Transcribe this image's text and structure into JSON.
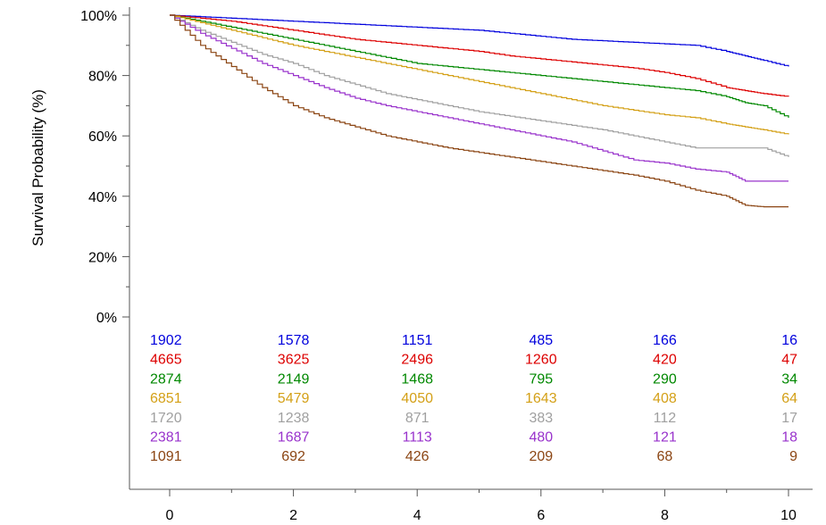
{
  "chart_data": {
    "type": "line",
    "title": "",
    "xlabel": "",
    "ylabel": "Survival Probability (%)",
    "xlim": [
      0,
      10
    ],
    "ylim": [
      0,
      100
    ],
    "x_ticks": [
      "0",
      "2",
      "4",
      "6",
      "8",
      "10"
    ],
    "y_ticks": [
      "0%",
      "20%",
      "40%",
      "60%",
      "80%",
      "100%"
    ],
    "grid": false,
    "legend": "none",
    "series": [
      {
        "color": "#0000dd",
        "x": [
          0,
          0.5,
          1,
          1.5,
          2,
          2.5,
          3,
          3.5,
          4,
          4.5,
          5,
          5.5,
          6,
          6.5,
          7,
          7.5,
          8,
          8.5,
          9,
          9.3,
          9.6,
          10
        ],
        "values": [
          100,
          99.5,
          99,
          98.5,
          98,
          97.5,
          97,
          96.5,
          96,
          95.5,
          95,
          94,
          93,
          92,
          91.5,
          91,
          90.5,
          90,
          88,
          86.5,
          85,
          83
        ]
      },
      {
        "color": "#dd0000",
        "x": [
          0,
          0.5,
          1,
          1.5,
          2,
          2.5,
          3,
          3.5,
          4,
          4.5,
          5,
          5.5,
          6,
          6.5,
          7,
          7.5,
          8,
          8.5,
          9,
          9.3,
          9.6,
          10
        ],
        "values": [
          100,
          99,
          98,
          96.5,
          95,
          93.5,
          92,
          91,
          90,
          89,
          88,
          86.5,
          85.5,
          84.5,
          83.5,
          82.5,
          81,
          79,
          76,
          75,
          74,
          73
        ]
      },
      {
        "color": "#008800",
        "x": [
          0,
          0.5,
          1,
          1.5,
          2,
          2.5,
          3,
          3.5,
          4,
          4.5,
          5,
          5.5,
          6,
          6.5,
          7,
          7.5,
          8,
          8.5,
          9,
          9.3,
          9.6,
          10
        ],
        "values": [
          100,
          98,
          96,
          94,
          92,
          90,
          88,
          86,
          84,
          83,
          82,
          81,
          80,
          79,
          78,
          77,
          76,
          75,
          73,
          71,
          70,
          66
        ]
      },
      {
        "color": "#d4a017",
        "x": [
          0,
          0.5,
          1,
          1.5,
          2,
          2.5,
          3,
          3.5,
          4,
          4.5,
          5,
          5.5,
          6,
          6.5,
          7,
          7.5,
          8,
          8.5,
          9,
          9.3,
          9.6,
          10
        ],
        "values": [
          100,
          97.5,
          95,
          92.5,
          90,
          88,
          86,
          84,
          82,
          80,
          78,
          76,
          74,
          72,
          70,
          68.5,
          67,
          66,
          64,
          63,
          62,
          60.5
        ]
      },
      {
        "color": "#a0a0a0",
        "x": [
          0,
          0.5,
          1,
          1.5,
          2,
          2.5,
          3,
          3.5,
          4,
          4.5,
          5,
          5.5,
          6,
          6.5,
          7,
          7.5,
          8,
          8.5,
          9,
          9.3,
          9.6,
          10
        ],
        "values": [
          100,
          95,
          91,
          87,
          84,
          80,
          77,
          74,
          72,
          70,
          68,
          66.5,
          65,
          63.5,
          62,
          60,
          58,
          56,
          56,
          56,
          56,
          53
        ]
      },
      {
        "color": "#9933cc",
        "x": [
          0,
          0.5,
          1,
          1.5,
          2,
          2.5,
          3,
          3.5,
          4,
          4.5,
          5,
          5.5,
          6,
          6.5,
          7,
          7.5,
          8,
          8.5,
          9,
          9.3,
          9.6,
          10
        ],
        "values": [
          100,
          94,
          89,
          84,
          80,
          76,
          72.5,
          70,
          68,
          66,
          64,
          62,
          60,
          58,
          55,
          52,
          51,
          49,
          48,
          45,
          45,
          45
        ]
      },
      {
        "color": "#8b4513",
        "x": [
          0,
          0.5,
          1,
          1.5,
          2,
          2.5,
          3,
          3.5,
          4,
          4.5,
          5,
          5.5,
          6,
          6.5,
          7,
          7.5,
          8,
          8.5,
          9,
          9.3,
          9.6,
          10
        ],
        "values": [
          100,
          90,
          83,
          76,
          70,
          66,
          63,
          60,
          58,
          56,
          54.5,
          53,
          51.5,
          50,
          48.5,
          47,
          45,
          42,
          40,
          37,
          36.5,
          36.5
        ]
      }
    ],
    "risk_table": {
      "times": [
        0,
        2,
        4,
        6,
        8,
        10
      ],
      "rows": [
        {
          "color": "#0000dd",
          "values": [
            "1902",
            "1578",
            "1151",
            "485",
            "166",
            "16"
          ]
        },
        {
          "color": "#dd0000",
          "values": [
            "4665",
            "3625",
            "2496",
            "1260",
            "420",
            "47"
          ]
        },
        {
          "color": "#008800",
          "values": [
            "2874",
            "2149",
            "1468",
            "795",
            "290",
            "34"
          ]
        },
        {
          "color": "#d4a017",
          "values": [
            "6851",
            "5479",
            "4050",
            "1643",
            "408",
            "64"
          ]
        },
        {
          "color": "#a0a0a0",
          "values": [
            "1720",
            "1238",
            "871",
            "383",
            "112",
            "17"
          ]
        },
        {
          "color": "#9933cc",
          "values": [
            "2381",
            "1687",
            "1113",
            "480",
            "121",
            "18"
          ]
        },
        {
          "color": "#8b4513",
          "values": [
            "1091",
            "692",
            "426",
            "209",
            "68",
            "9"
          ]
        }
      ]
    }
  }
}
